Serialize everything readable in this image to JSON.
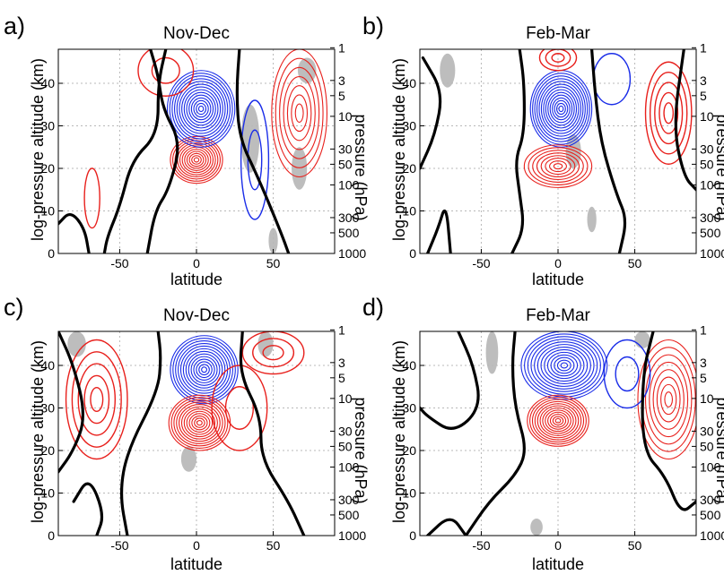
{
  "chart_data": [
    {
      "type": "contour",
      "panel": "a)",
      "title": "Nov-Dec",
      "xlabel": "latitude",
      "ylabel": "log-pressure altitude (km)",
      "y2label": "pressure (hPa)",
      "x_ticks": [
        -50,
        0,
        50
      ],
      "y_ticks": [
        0,
        10,
        20,
        30,
        40
      ],
      "y2_ticks": [
        1,
        3,
        5,
        10,
        30,
        50,
        100,
        300,
        500,
        1000
      ],
      "xlim": [
        -90,
        90
      ],
      "ylim": [
        0,
        48
      ],
      "grid": true,
      "colors": {
        "positive": "#e8201c",
        "negative": "#1a2de8",
        "zero": "#000000",
        "shading": "#bdbdbd"
      },
      "features": [
        {
          "sign": "positive",
          "x": 0,
          "y": 22,
          "rx": 17,
          "ry": 5.5,
          "n": 11
        },
        {
          "sign": "negative",
          "x": 3,
          "y": 34,
          "rx": 22,
          "ry": 9,
          "n": 14
        },
        {
          "sign": "positive",
          "x": 67,
          "y": 33,
          "rx": 18,
          "ry": 15,
          "n": 7
        },
        {
          "sign": "positive",
          "x": -20,
          "y": 43,
          "rx": 18,
          "ry": 6,
          "n": 2
        },
        {
          "sign": "positive",
          "x": -68,
          "y": 13,
          "rx": 5,
          "ry": 7,
          "n": 1
        },
        {
          "sign": "negative",
          "x": 38,
          "y": 22,
          "rx": 9,
          "ry": 14,
          "n": 2
        }
      ],
      "zero_lines": [
        [
          [
            -20,
            48
          ],
          [
            -25,
            40
          ],
          [
            -25,
            28
          ],
          [
            -42,
            22
          ],
          [
            -50,
            11
          ],
          [
            -58,
            4
          ],
          [
            -60,
            0
          ]
        ],
        [
          [
            -90,
            7
          ],
          [
            -82,
            10
          ],
          [
            -73,
            6
          ],
          [
            -70,
            0
          ]
        ],
        [
          [
            -30,
            48
          ],
          [
            -25,
            42
          ],
          [
            -22,
            34
          ],
          [
            -10,
            26
          ],
          [
            -18,
            15
          ],
          [
            -27,
            10
          ],
          [
            -32,
            0
          ]
        ],
        [
          [
            28,
            48
          ],
          [
            26,
            38
          ],
          [
            28,
            27
          ],
          [
            40,
            18
          ],
          [
            55,
            5
          ],
          [
            60,
            0
          ]
        ]
      ],
      "shading": [
        {
          "x": 35,
          "y": 27,
          "rx": 6,
          "ry": 8
        },
        {
          "x": 67,
          "y": 20,
          "rx": 5,
          "ry": 5
        },
        {
          "x": 72,
          "y": 43,
          "rx": 6,
          "ry": 3
        },
        {
          "x": 50,
          "y": 3,
          "rx": 3,
          "ry": 3
        }
      ]
    },
    {
      "type": "contour",
      "panel": "b)",
      "title": "Feb-Mar",
      "xlabel": "latitude",
      "ylabel": "log-pressure altitude (km)",
      "y2label": "pressure (hPa)",
      "x_ticks": [
        -50,
        0,
        50
      ],
      "y_ticks": [
        0,
        10,
        20,
        30,
        40
      ],
      "y2_ticks": [
        1,
        3,
        5,
        10,
        30,
        50,
        100,
        300,
        500,
        1000
      ],
      "xlim": [
        -90,
        90
      ],
      "ylim": [
        0,
        48
      ],
      "grid": true,
      "colors": {
        "positive": "#e8201c",
        "negative": "#1a2de8",
        "zero": "#000000",
        "shading": "#bdbdbd"
      },
      "features": [
        {
          "sign": "negative",
          "x": 2,
          "y": 34,
          "rx": 20,
          "ry": 9,
          "n": 14
        },
        {
          "sign": "positive",
          "x": 0,
          "y": 20.5,
          "rx": 22,
          "ry": 5,
          "n": 8
        },
        {
          "sign": "positive",
          "x": 0,
          "y": 46,
          "rx": 12,
          "ry": 3,
          "n": 3
        },
        {
          "sign": "positive",
          "x": 72,
          "y": 33,
          "rx": 15,
          "ry": 12,
          "n": 5
        },
        {
          "sign": "negative",
          "x": 35,
          "y": 41,
          "rx": 12,
          "ry": 6,
          "n": 1
        }
      ],
      "zero_lines": [
        [
          [
            -25,
            48
          ],
          [
            -22,
            40
          ],
          [
            -22,
            28
          ],
          [
            -28,
            22
          ],
          [
            -25,
            14
          ],
          [
            -22,
            6
          ],
          [
            -30,
            0
          ]
        ],
        [
          [
            22,
            48
          ],
          [
            24,
            38
          ],
          [
            28,
            26
          ],
          [
            38,
            14
          ],
          [
            45,
            8
          ],
          [
            40,
            0
          ]
        ],
        [
          [
            -90,
            20
          ],
          [
            -80,
            28
          ],
          [
            -75,
            38
          ],
          [
            -88,
            46
          ]
        ],
        [
          [
            82,
            48
          ],
          [
            75,
            30
          ],
          [
            82,
            18
          ],
          [
            90,
            15
          ]
        ],
        [
          [
            -85,
            0
          ],
          [
            -78,
            6
          ],
          [
            -73,
            12
          ],
          [
            -70,
            0
          ]
        ]
      ],
      "shading": [
        {
          "x": -72,
          "y": 43,
          "rx": 5,
          "ry": 4
        },
        {
          "x": 10,
          "y": 24,
          "rx": 5,
          "ry": 4
        },
        {
          "x": 22,
          "y": 8,
          "rx": 3,
          "ry": 3
        }
      ]
    },
    {
      "type": "contour",
      "panel": "c)",
      "title": "Nov-Dec",
      "xlabel": "latitude",
      "ylabel": "log-pressure altitude (km)",
      "y2label": "pressure (hPa)",
      "x_ticks": [
        -50,
        0,
        50
      ],
      "y_ticks": [
        0,
        10,
        20,
        30,
        40
      ],
      "y2_ticks": [
        1,
        3,
        5,
        10,
        30,
        50,
        100,
        300,
        500,
        1000
      ],
      "xlim": [
        -90,
        90
      ],
      "ylim": [
        0,
        48
      ],
      "grid": true,
      "colors": {
        "positive": "#e8201c",
        "negative": "#1a2de8",
        "zero": "#000000",
        "shading": "#bdbdbd"
      },
      "features": [
        {
          "sign": "negative",
          "x": 5,
          "y": 39,
          "rx": 22,
          "ry": 8,
          "n": 13
        },
        {
          "sign": "positive",
          "x": 2,
          "y": 26.5,
          "rx": 20,
          "ry": 6.5,
          "n": 12
        },
        {
          "sign": "positive",
          "x": -65,
          "y": 32,
          "rx": 20,
          "ry": 14,
          "n": 5
        },
        {
          "sign": "positive",
          "x": 50,
          "y": 43,
          "rx": 20,
          "ry": 5,
          "n": 3
        },
        {
          "sign": "positive",
          "x": 28,
          "y": 30,
          "rx": 18,
          "ry": 10,
          "n": 2
        }
      ],
      "zero_lines": [
        [
          [
            -25,
            48
          ],
          [
            -23,
            42
          ],
          [
            -25,
            34
          ],
          [
            -45,
            20
          ],
          [
            -50,
            10
          ],
          [
            -45,
            0
          ]
        ],
        [
          [
            30,
            48
          ],
          [
            28,
            38
          ],
          [
            42,
            28
          ],
          [
            42,
            18
          ],
          [
            60,
            8
          ],
          [
            70,
            0
          ]
        ],
        [
          [
            -80,
            8
          ],
          [
            -70,
            14
          ],
          [
            -60,
            5
          ],
          [
            -65,
            0
          ]
        ],
        [
          [
            -90,
            15
          ],
          [
            -80,
            20
          ],
          [
            -72,
            28
          ],
          [
            -80,
            40
          ],
          [
            -90,
            48
          ]
        ]
      ],
      "shading": [
        {
          "x": -78,
          "y": 45,
          "rx": 6,
          "ry": 3
        },
        {
          "x": 45,
          "y": 45,
          "rx": 5,
          "ry": 3
        },
        {
          "x": -5,
          "y": 18,
          "rx": 5,
          "ry": 3
        }
      ]
    },
    {
      "type": "contour",
      "panel": "d)",
      "title": "Feb-Mar",
      "xlabel": "latitude",
      "ylabel": "log-pressure altitude (km)",
      "y2label": "pressure (hPa)",
      "x_ticks": [
        -50,
        0,
        50
      ],
      "y_ticks": [
        0,
        10,
        20,
        30,
        40
      ],
      "y2_ticks": [
        1,
        3,
        5,
        10,
        30,
        50,
        100,
        300,
        500,
        1000
      ],
      "xlim": [
        -90,
        90
      ],
      "ylim": [
        0,
        48
      ],
      "grid": true,
      "colors": {
        "positive": "#e8201c",
        "negative": "#1a2de8",
        "zero": "#000000",
        "shading": "#bdbdbd"
      },
      "features": [
        {
          "sign": "negative",
          "x": 4,
          "y": 40,
          "rx": 28,
          "ry": 8,
          "n": 13
        },
        {
          "sign": "positive",
          "x": 0,
          "y": 27,
          "rx": 20,
          "ry": 6,
          "n": 12
        },
        {
          "sign": "positive",
          "x": 72,
          "y": 32,
          "rx": 20,
          "ry": 14,
          "n": 8
        },
        {
          "sign": "negative",
          "x": 45,
          "y": 38,
          "rx": 15,
          "ry": 8,
          "n": 2
        }
      ],
      "zero_lines": [
        [
          [
            -28,
            48
          ],
          [
            -30,
            40
          ],
          [
            -28,
            30
          ],
          [
            -20,
            20
          ],
          [
            -28,
            14
          ],
          [
            -45,
            8
          ],
          [
            -60,
            0
          ]
        ],
        [
          [
            -65,
            48
          ],
          [
            -55,
            40
          ],
          [
            -50,
            30
          ],
          [
            -68,
            24
          ],
          [
            -85,
            28
          ],
          [
            -90,
            30
          ]
        ],
        [
          [
            -85,
            0
          ],
          [
            -70,
            5
          ],
          [
            -60,
            0
          ]
        ],
        [
          [
            62,
            48
          ],
          [
            55,
            38
          ],
          [
            55,
            20
          ],
          [
            70,
            14
          ],
          [
            80,
            5
          ],
          [
            90,
            8
          ]
        ]
      ],
      "shading": [
        {
          "x": -43,
          "y": 43,
          "rx": 4,
          "ry": 5
        },
        {
          "x": 55,
          "y": 46,
          "rx": 5,
          "ry": 2
        },
        {
          "x": -14,
          "y": 2,
          "rx": 4,
          "ry": 2
        }
      ]
    }
  ]
}
